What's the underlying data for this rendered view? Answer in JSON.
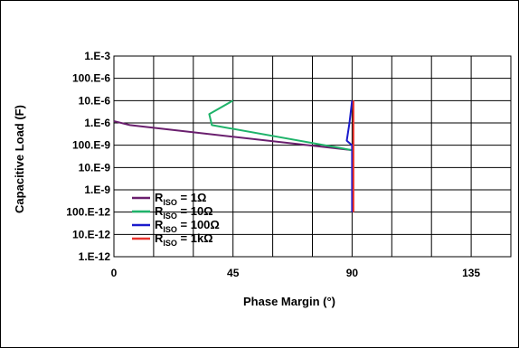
{
  "chart_data": {
    "type": "line",
    "title": "",
    "xlabel": "Phase Margin (°)",
    "ylabel": "Capacitive Load (F)",
    "xlim": [
      0,
      150
    ],
    "ylim_log10": [
      -12,
      -3
    ],
    "y_scale": "log",
    "grid": true,
    "legend_position": "bottom-left",
    "x_ticks": [
      {
        "value": 0,
        "label": "0"
      },
      {
        "value": 45,
        "label": "45"
      },
      {
        "value": 90,
        "label": "90"
      },
      {
        "value": 135,
        "label": "135"
      }
    ],
    "x_grid_values": [
      0,
      15,
      30,
      45,
      60,
      75,
      90,
      105,
      120,
      135,
      150
    ],
    "y_ticks": [
      {
        "value": 0.001,
        "label": "1.E-3"
      },
      {
        "value": 0.0001,
        "label": "100.E-6"
      },
      {
        "value": 1e-05,
        "label": "10.E-6"
      },
      {
        "value": 1e-06,
        "label": "1.E-6"
      },
      {
        "value": 1e-07,
        "label": "100.E-9"
      },
      {
        "value": 1e-08,
        "label": "10.E-9"
      },
      {
        "value": 1e-09,
        "label": "1.E-9"
      },
      {
        "value": 1e-10,
        "label": "100.E-12"
      },
      {
        "value": 1e-11,
        "label": "10.E-12"
      },
      {
        "value": 1e-12,
        "label": "1.E-12"
      }
    ],
    "series": [
      {
        "name": "R_ISO = 1Ω",
        "name_main": "R",
        "name_sub": "ISO",
        "name_suffix": " = 1Ω",
        "color": "#6a1f6e",
        "points": [
          [
            0,
            1.2e-06
          ],
          [
            6,
            8e-07
          ],
          [
            90,
            6e-08
          ]
        ]
      },
      {
        "name": "R_ISO = 10Ω",
        "name_main": "R",
        "name_sub": "ISO",
        "name_suffix": " = 10Ω",
        "color": "#1fb36a",
        "points": [
          [
            45,
            1e-05
          ],
          [
            36,
            2.5e-06
          ],
          [
            37,
            8e-07
          ],
          [
            90,
            6e-08
          ]
        ]
      },
      {
        "name": "R_ISO = 100Ω",
        "name_main": "R",
        "name_sub": "ISO",
        "name_suffix": " = 100Ω",
        "color": "#1a1acc",
        "points": [
          [
            90,
            1e-05
          ],
          [
            89,
            1e-06
          ],
          [
            88,
            1.6e-07
          ],
          [
            90,
            1e-07
          ],
          [
            90,
            1e-10
          ]
        ]
      },
      {
        "name": "R_ISO = 1kΩ",
        "name_main": "R",
        "name_sub": "ISO",
        "name_suffix": " = 1kΩ",
        "color": "#e8332d",
        "points": [
          [
            90.5,
            1e-05
          ],
          [
            90.5,
            1e-10
          ]
        ]
      }
    ]
  }
}
